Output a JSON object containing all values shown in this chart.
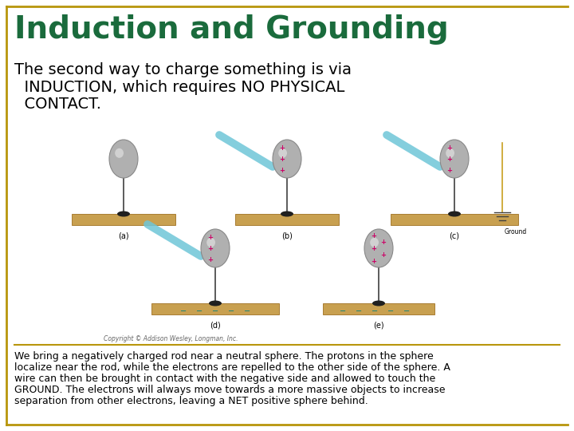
{
  "title": "Induction and Grounding",
  "title_color": "#1a6b3c",
  "title_fontsize": 28,
  "body_text_line1": "The second way to charge something is via",
  "body_text_line2": "  INDUCTION, which requires NO PHYSICAL",
  "body_text_line3": "  CONTACT.",
  "body_fontsize": 14,
  "body_color": "#000000",
  "description_text": "We bring a negatively charged rod near a neutral sphere. The protons in the sphere\nlocalize near the rod, while the electrons are repelled to the other side of the sphere. A\nwire can then be brought in contact with the negative side and allowed to touch the\nGROUND. The electrons will always move towards a more massive objects to increase\nseparation from other electrons, leaving a NET positive sphere behind.",
  "description_fontsize": 9,
  "description_color": "#000000",
  "background_color": "#ffffff",
  "border_color": "#b8960c",
  "divider_color": "#b8960c",
  "copyright_text": "Copyright © Addison Wesley, Longman, Inc.",
  "rod_color": "#6ec6d8",
  "sphere_color": "#b0b0b0",
  "sphere_edge": "#888888",
  "table_color": "#c8a050",
  "table_edge": "#a07020",
  "stand_color": "#404040",
  "base_color": "#202020",
  "charge_plus_color": "#cc0066",
  "charge_minus_color": "#008080",
  "ground_wire_color": "#c8a020",
  "label_color": "#000000",
  "label_fontsize": 7
}
